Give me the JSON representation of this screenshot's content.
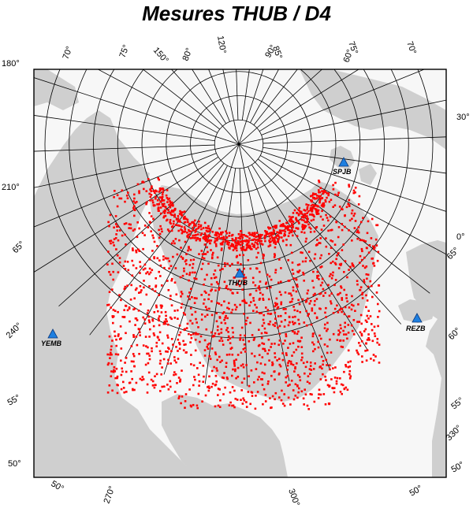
{
  "title": "Mesures THUB / D4",
  "colors": {
    "land": "#cfcfcf",
    "ocean": "#f7f7f7",
    "grid": "#000000",
    "measure": "#ff0000",
    "station": "#1e7fe0"
  },
  "stations": [
    {
      "code": "SPJB",
      "lon": 18,
      "lat": 75
    },
    {
      "code": "THUB",
      "lon": 292,
      "lat": 77
    },
    {
      "code": "YEMB",
      "lon": 246,
      "lat": 63
    },
    {
      "code": "REZB",
      "lon": 24,
      "lat": 64
    }
  ],
  "tick_labels": [
    {
      "text": "180°"
    },
    {
      "text": "70°"
    },
    {
      "text": "75°"
    },
    {
      "text": "150°"
    },
    {
      "text": "80°"
    },
    {
      "text": "120°"
    },
    {
      "text": "85°"
    },
    {
      "text": "90°"
    },
    {
      "text": "75°"
    },
    {
      "text": "60°"
    },
    {
      "text": "70°"
    },
    {
      "text": "30°"
    },
    {
      "text": "210°"
    },
    {
      "text": "0°"
    },
    {
      "text": "65°"
    },
    {
      "text": "65°"
    },
    {
      "text": "240°"
    },
    {
      "text": "60°"
    },
    {
      "text": "55°"
    },
    {
      "text": "55°"
    },
    {
      "text": "330°"
    },
    {
      "text": "50°"
    },
    {
      "text": "50°"
    },
    {
      "text": "270°"
    },
    {
      "text": "300°"
    },
    {
      "text": "50°"
    },
    {
      "text": "50°"
    }
  ]
}
